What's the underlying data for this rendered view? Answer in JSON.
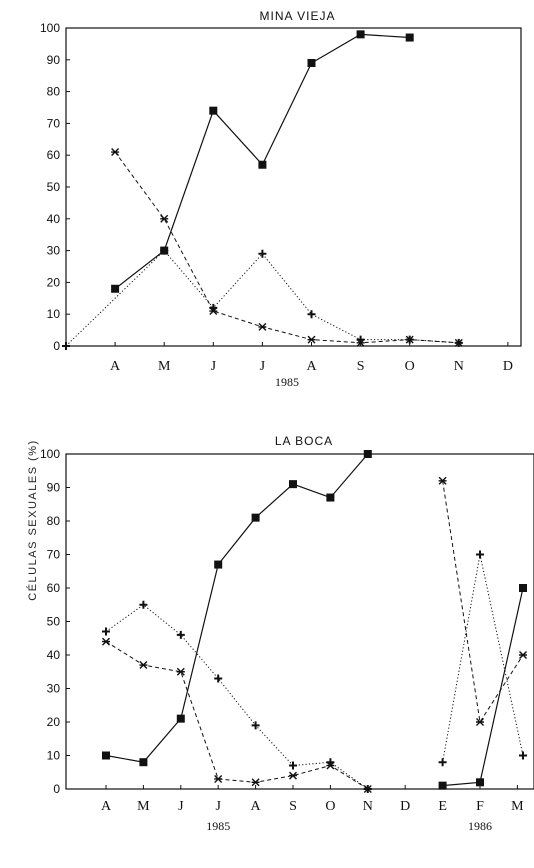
{
  "ylabel": "CÉLULAS SEXUALES (%)",
  "chart_data": [
    {
      "type": "line",
      "title": "MINA VIEJA",
      "ylim": [
        0,
        100
      ],
      "yticks": [
        0,
        10,
        20,
        30,
        40,
        50,
        60,
        70,
        80,
        90,
        100
      ],
      "categories": [
        "",
        "A",
        "M",
        "J",
        "J",
        "A",
        "S",
        "O",
        "N",
        "D"
      ],
      "year_labels": [
        {
          "label": "1985",
          "at": 4.5
        }
      ],
      "grid": false,
      "series": [
        {
          "marker": "square",
          "line": "solid",
          "points": [
            [
              1,
              18
            ],
            [
              2,
              30
            ],
            [
              3,
              74
            ],
            [
              4,
              57
            ],
            [
              5,
              89
            ],
            [
              6,
              98
            ],
            [
              7,
              97
            ]
          ]
        },
        {
          "marker": "asterisk",
          "line": "dashed",
          "points": [
            [
              1,
              61
            ],
            [
              2,
              40
            ],
            [
              3,
              11
            ],
            [
              4,
              6
            ],
            [
              5,
              2
            ],
            [
              6,
              1
            ],
            [
              7,
              2
            ],
            [
              8,
              1
            ]
          ]
        },
        {
          "marker": "plus",
          "line": "dotted",
          "points": [
            [
              0,
              0
            ],
            [
              2,
              30
            ],
            [
              3,
              12
            ],
            [
              4,
              29
            ],
            [
              5,
              10
            ],
            [
              6,
              2
            ],
            [
              7,
              2
            ],
            [
              8,
              1
            ]
          ]
        }
      ]
    },
    {
      "type": "line",
      "title": "LA BOCA",
      "ylim": [
        0,
        100
      ],
      "yticks": [
        0,
        10,
        20,
        30,
        40,
        50,
        60,
        70,
        80,
        90,
        100
      ],
      "categories": [
        "A",
        "M",
        "J",
        "J",
        "A",
        "S",
        "O",
        "N",
        "D",
        "E",
        "F",
        "M"
      ],
      "year_labels": [
        {
          "label": "1985",
          "at": 3
        },
        {
          "label": "1986",
          "at": 10
        }
      ],
      "grid": false,
      "series": [
        {
          "marker": "square",
          "line": "solid",
          "points": [
            [
              0,
              10
            ],
            [
              1,
              8
            ],
            [
              2,
              21
            ],
            [
              3,
              67
            ],
            [
              4,
              81
            ],
            [
              5,
              91
            ],
            [
              6,
              87
            ],
            [
              7,
              100
            ]
          ],
          "points2": [
            [
              9,
              1
            ],
            [
              10,
              2
            ],
            [
              11.15,
              60
            ]
          ]
        },
        {
          "marker": "asterisk",
          "line": "dashed",
          "points": [
            [
              0,
              44
            ],
            [
              1,
              37
            ],
            [
              2,
              35
            ],
            [
              3,
              3
            ],
            [
              4,
              2
            ],
            [
              5,
              4
            ],
            [
              6,
              7
            ],
            [
              7,
              0
            ]
          ],
          "points2": [
            [
              9,
              92
            ],
            [
              10,
              20
            ],
            [
              11.15,
              40
            ]
          ]
        },
        {
          "marker": "plus",
          "line": "dotted",
          "points": [
            [
              0,
              47
            ],
            [
              1,
              55
            ],
            [
              2,
              46
            ],
            [
              3,
              33
            ],
            [
              4,
              19
            ],
            [
              5,
              7
            ],
            [
              6,
              8
            ],
            [
              7,
              0
            ]
          ],
          "points2": [
            [
              9,
              8
            ],
            [
              10,
              70
            ],
            [
              11.15,
              10
            ]
          ]
        }
      ]
    }
  ]
}
